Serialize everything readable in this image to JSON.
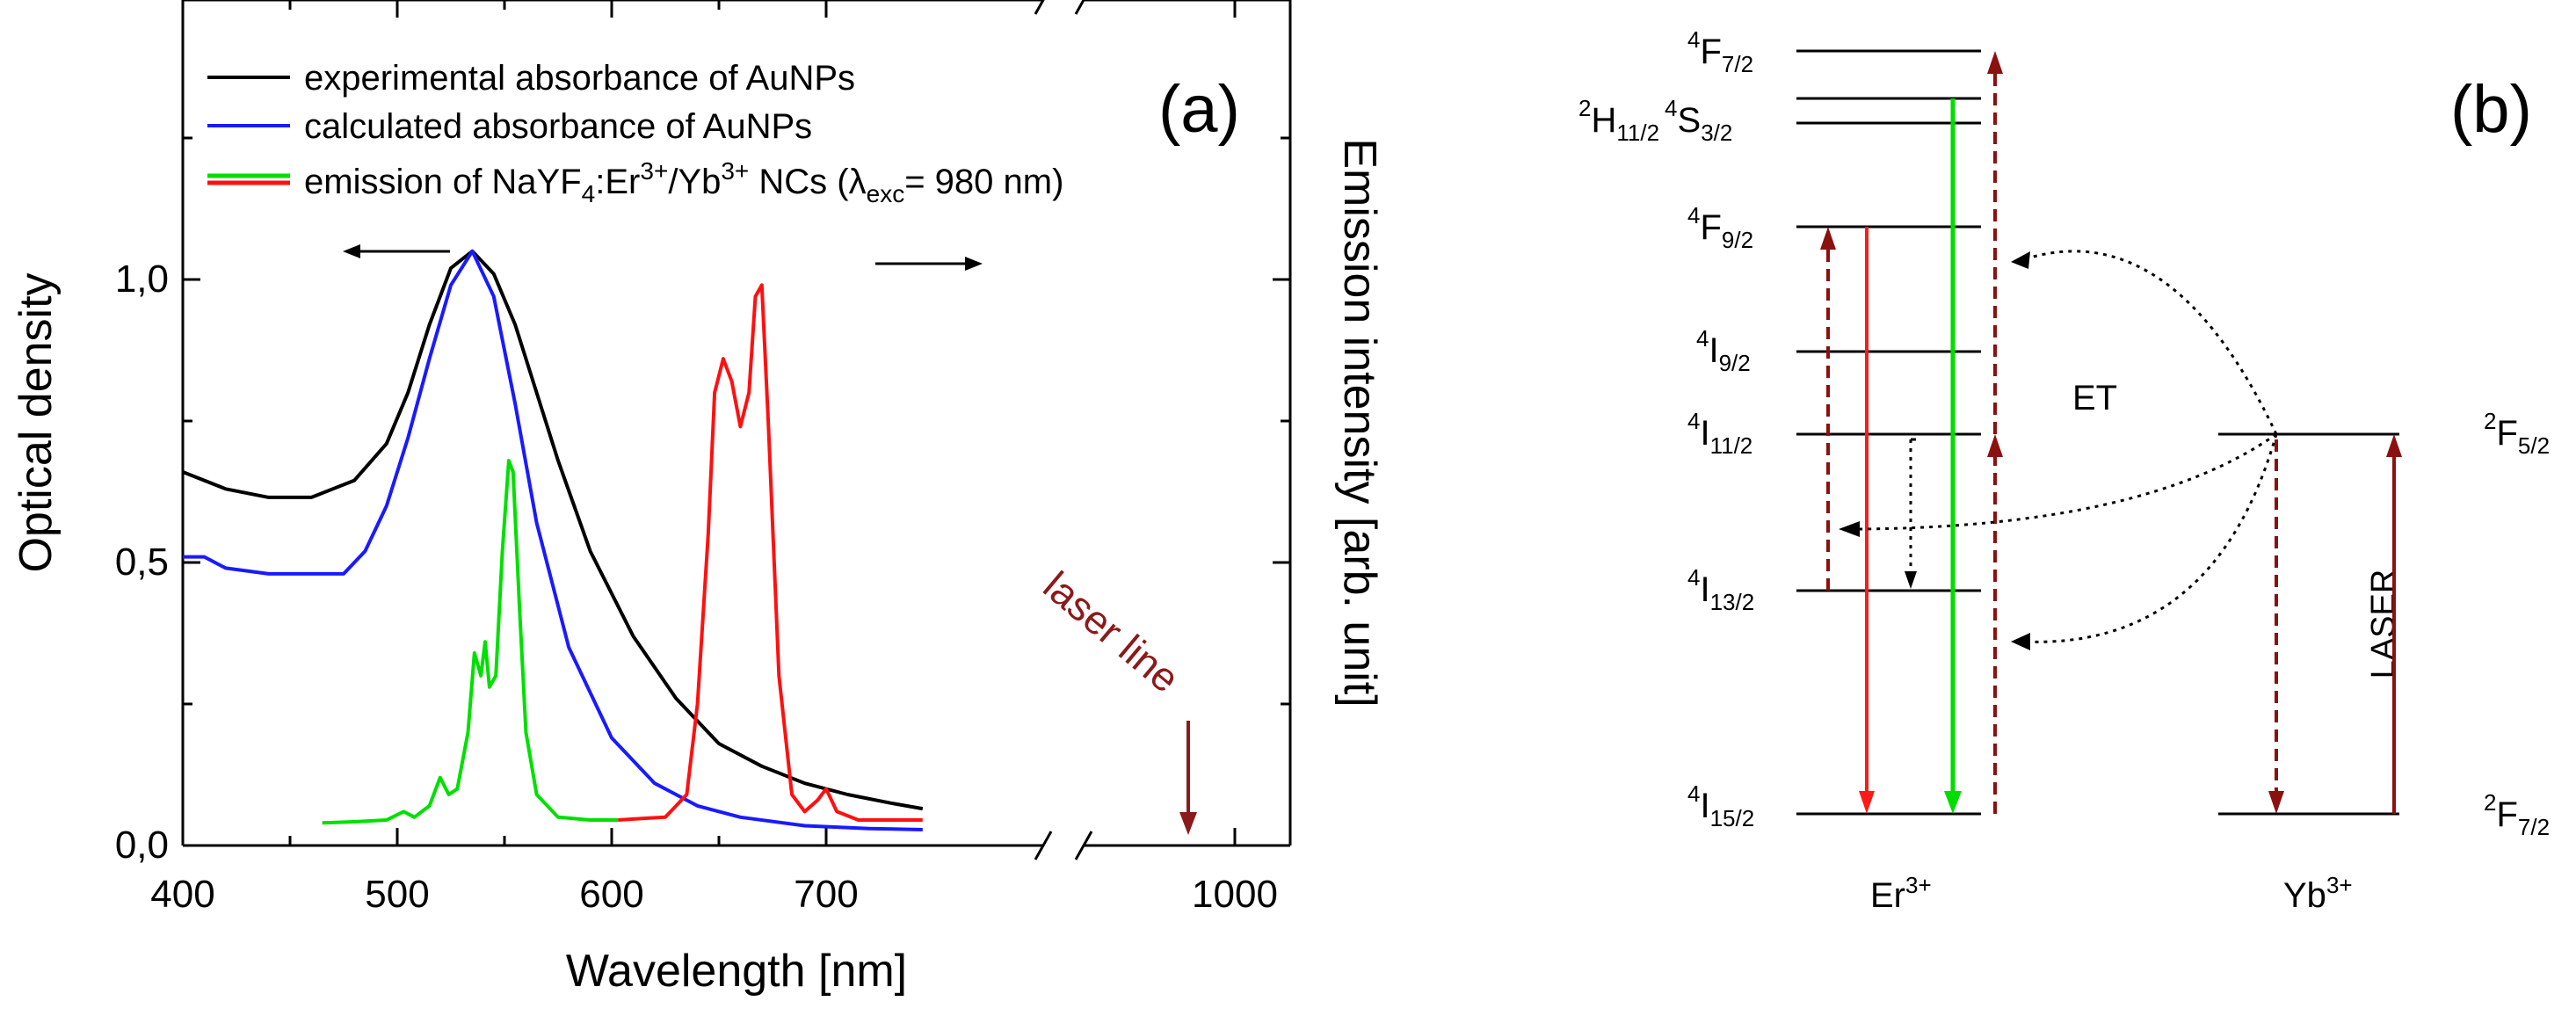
{
  "chart_data": [
    {
      "type": "line",
      "panel_label": "(a)",
      "xlabel": "Wavelength [nm]",
      "ylabel_left": "Optical density",
      "ylabel_right": "Emission intensity [arb. unit]",
      "x_ticks": [
        "400",
        "500",
        "600",
        "700",
        "1000"
      ],
      "y_ticks": [
        "0,0",
        "0,5",
        "1,0"
      ],
      "xlim": [
        400,
        745
      ],
      "x_break": {
        "from": 745,
        "to": 950,
        "after_break_range": [
          950,
          1030
        ]
      },
      "ylim": [
        0,
        1.4
      ],
      "legend_position": "top-left",
      "legend": [
        {
          "label": "experimental absorbance of AuNPs",
          "color": "#000000"
        },
        {
          "label": "calculated absorbance of AuNPs",
          "color": "#1a1aff"
        },
        {
          "label_main": "emission of NaYF",
          "label_sub1": "4",
          "label_mid": ":Er",
          "label_sup1": "3+",
          "label_mid2": "/Yb",
          "label_sup2": "3+",
          "label_mid3": " NCs (",
          "label_lambda": "λ",
          "label_sub2": "exc",
          "label_end": "= 980 nm)",
          "colors": [
            "#00e000",
            "#ff1010"
          ]
        }
      ],
      "series": [
        {
          "name": "experimental absorbance of AuNPs",
          "color": "#000000",
          "x": [
            400,
            420,
            440,
            460,
            480,
            495,
            505,
            515,
            525,
            535,
            545,
            555,
            565,
            575,
            590,
            610,
            630,
            650,
            670,
            690,
            710,
            730,
            745
          ],
          "y": [
            0.66,
            0.63,
            0.615,
            0.615,
            0.645,
            0.71,
            0.8,
            0.92,
            1.02,
            1.05,
            1.01,
            0.92,
            0.8,
            0.68,
            0.52,
            0.37,
            0.26,
            0.18,
            0.14,
            0.11,
            0.09,
            0.075,
            0.065
          ]
        },
        {
          "name": "calculated absorbance of AuNPs",
          "color": "#1a1aff",
          "x": [
            400,
            410,
            420,
            440,
            460,
            475,
            485,
            495,
            505,
            515,
            525,
            535,
            545,
            555,
            565,
            580,
            600,
            620,
            640,
            660,
            690,
            720,
            745
          ],
          "y": [
            0.51,
            0.51,
            0.49,
            0.48,
            0.48,
            0.48,
            0.52,
            0.6,
            0.72,
            0.86,
            0.99,
            1.05,
            0.97,
            0.78,
            0.57,
            0.35,
            0.19,
            0.11,
            0.07,
            0.05,
            0.035,
            0.03,
            0.028
          ]
        },
        {
          "name": "emission (green band)",
          "color": "#00e000",
          "x": [
            465,
            480,
            495,
            503,
            508,
            515,
            520,
            524,
            528,
            533,
            536,
            539,
            541,
            543,
            546,
            549,
            552,
            554,
            557,
            560,
            565,
            575,
            590,
            603
          ],
          "y": [
            0.04,
            0.042,
            0.045,
            0.06,
            0.05,
            0.07,
            0.12,
            0.09,
            0.1,
            0.2,
            0.34,
            0.3,
            0.36,
            0.28,
            0.3,
            0.52,
            0.68,
            0.66,
            0.42,
            0.2,
            0.09,
            0.05,
            0.045,
            0.045
          ]
        },
        {
          "name": "emission (red band)",
          "color": "#ff1010",
          "x": [
            603,
            615,
            625,
            635,
            640,
            645,
            648,
            652,
            656,
            660,
            664,
            667,
            670,
            673,
            678,
            684,
            690,
            696,
            700,
            705,
            715,
            730,
            745
          ],
          "y": [
            0.045,
            0.048,
            0.05,
            0.09,
            0.25,
            0.55,
            0.8,
            0.86,
            0.82,
            0.74,
            0.8,
            0.97,
            0.99,
            0.75,
            0.3,
            0.09,
            0.06,
            0.08,
            0.1,
            0.06,
            0.045,
            0.045,
            0.045
          ]
        }
      ],
      "annotations": [
        {
          "text": "laser line",
          "color": "#8b1a1a",
          "x": 980
        }
      ]
    },
    {
      "type": "diagram",
      "panel_label": "(b)",
      "er_label_main": "Er",
      "er_label_sup": "3+",
      "yb_label_main": "Yb",
      "yb_label_sup": "3+",
      "et_label": "ET",
      "laser_label": "LASER",
      "er_levels": [
        {
          "sup": "4",
          "main": "F",
          "sub": "7/2"
        },
        {
          "sup": "2",
          "main": "H",
          "sub": "11/2",
          "sup2": "4",
          "main2": "S",
          "sub2": "3/2"
        },
        {
          "sup": "4",
          "main": "F",
          "sub": "9/2"
        },
        {
          "sup": "4",
          "main": "I",
          "sub": "9/2"
        },
        {
          "sup": "4",
          "main": "I",
          "sub": "11/2"
        },
        {
          "sup": "4",
          "main": "I",
          "sub": "13/2"
        },
        {
          "sup": "4",
          "main": "I",
          "sub": "15/2"
        }
      ],
      "yb_levels": [
        {
          "sup": "2",
          "main": "F",
          "sub": "5/2"
        },
        {
          "sup": "2",
          "main": "F",
          "sub": "7/2"
        }
      ],
      "colors": {
        "red": "#ff1a1a",
        "green": "#00dd00",
        "darkred": "#8b1010"
      }
    }
  ]
}
